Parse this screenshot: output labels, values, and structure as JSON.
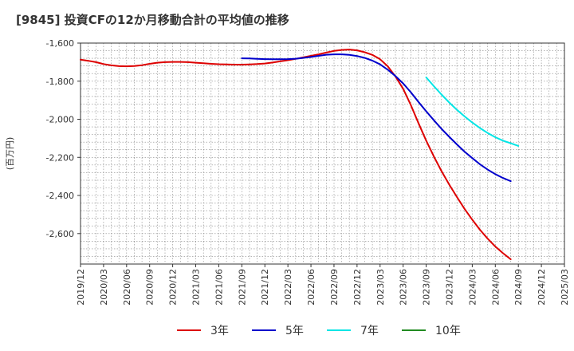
{
  "chart_data": {
    "type": "line",
    "title": "[9845]  投資CFの12か月移動合計の平均値の推移",
    "ylabel": "(百万円)",
    "xlabel": "",
    "ylim": [
      -2760,
      -1600
    ],
    "yticks": [
      -1600,
      -1800,
      -2000,
      -2200,
      -2400,
      -2600
    ],
    "ytick_labels": [
      "-1,600",
      "-1,800",
      "-2,000",
      "-2,200",
      "-2,400",
      "-2,600"
    ],
    "x_start": "2019-12",
    "x_end": "2025-03",
    "xtick_labels": [
      "2019/12",
      "2020/03",
      "2020/06",
      "2020/09",
      "2020/12",
      "2021/03",
      "2021/06",
      "2021/09",
      "2021/12",
      "2022/03",
      "2022/06",
      "2022/09",
      "2022/12",
      "2023/03",
      "2023/06",
      "2023/09",
      "2023/12",
      "2024/03",
      "2024/06",
      "2024/09",
      "2024/12",
      "2025/03"
    ],
    "grid": true,
    "legend_position": "bottom",
    "series": [
      {
        "name": "3年",
        "color": "#dd0000",
        "points": [
          [
            "2019-12",
            -1687
          ],
          [
            "2020-01",
            -1693
          ],
          [
            "2020-02",
            -1700
          ],
          [
            "2020-03",
            -1710
          ],
          [
            "2020-04",
            -1717
          ],
          [
            "2020-05",
            -1721
          ],
          [
            "2020-06",
            -1722
          ],
          [
            "2020-07",
            -1720
          ],
          [
            "2020-08",
            -1716
          ],
          [
            "2020-09",
            -1709
          ],
          [
            "2020-10",
            -1703
          ],
          [
            "2020-11",
            -1700
          ],
          [
            "2020-12",
            -1699
          ],
          [
            "2021-01",
            -1699
          ],
          [
            "2021-02",
            -1700
          ],
          [
            "2021-03",
            -1703
          ],
          [
            "2021-04",
            -1706
          ],
          [
            "2021-05",
            -1709
          ],
          [
            "2021-06",
            -1711
          ],
          [
            "2021-07",
            -1712
          ],
          [
            "2021-08",
            -1713
          ],
          [
            "2021-09",
            -1713
          ],
          [
            "2021-10",
            -1712
          ],
          [
            "2021-11",
            -1710
          ],
          [
            "2021-12",
            -1707
          ],
          [
            "2022-01",
            -1702
          ],
          [
            "2022-02",
            -1696
          ],
          [
            "2022-03",
            -1690
          ],
          [
            "2022-04",
            -1683
          ],
          [
            "2022-05",
            -1675
          ],
          [
            "2022-06",
            -1667
          ],
          [
            "2022-07",
            -1659
          ],
          [
            "2022-08",
            -1650
          ],
          [
            "2022-09",
            -1641
          ],
          [
            "2022-10",
            -1636
          ],
          [
            "2022-11",
            -1634
          ],
          [
            "2022-12",
            -1638
          ],
          [
            "2023-01",
            -1648
          ],
          [
            "2023-02",
            -1662
          ],
          [
            "2023-03",
            -1685
          ],
          [
            "2023-04",
            -1722
          ],
          [
            "2023-05",
            -1775
          ],
          [
            "2023-06",
            -1840
          ],
          [
            "2023-07",
            -1925
          ],
          [
            "2023-08",
            -2020
          ],
          [
            "2023-09",
            -2112
          ],
          [
            "2023-10",
            -2195
          ],
          [
            "2023-11",
            -2272
          ],
          [
            "2023-12",
            -2343
          ],
          [
            "2024-01",
            -2408
          ],
          [
            "2024-02",
            -2470
          ],
          [
            "2024-03",
            -2527
          ],
          [
            "2024-04",
            -2580
          ],
          [
            "2024-05",
            -2627
          ],
          [
            "2024-06",
            -2668
          ],
          [
            "2024-07",
            -2703
          ],
          [
            "2024-08",
            -2735
          ]
        ]
      },
      {
        "name": "5年",
        "color": "#0000cc",
        "points": [
          [
            "2021-09",
            -1680
          ],
          [
            "2021-10",
            -1681
          ],
          [
            "2021-11",
            -1683
          ],
          [
            "2021-12",
            -1684
          ],
          [
            "2022-01",
            -1685
          ],
          [
            "2022-02",
            -1685
          ],
          [
            "2022-03",
            -1684
          ],
          [
            "2022-04",
            -1682
          ],
          [
            "2022-05",
            -1678
          ],
          [
            "2022-06",
            -1673
          ],
          [
            "2022-07",
            -1667
          ],
          [
            "2022-08",
            -1661
          ],
          [
            "2022-09",
            -1659
          ],
          [
            "2022-10",
            -1659
          ],
          [
            "2022-11",
            -1662
          ],
          [
            "2022-12",
            -1668
          ],
          [
            "2023-01",
            -1678
          ],
          [
            "2023-02",
            -1692
          ],
          [
            "2023-03",
            -1712
          ],
          [
            "2023-04",
            -1740
          ],
          [
            "2023-05",
            -1773
          ],
          [
            "2023-06",
            -1812
          ],
          [
            "2023-07",
            -1858
          ],
          [
            "2023-08",
            -1909
          ],
          [
            "2023-09",
            -1958
          ],
          [
            "2023-10",
            -2005
          ],
          [
            "2023-11",
            -2050
          ],
          [
            "2023-12",
            -2092
          ],
          [
            "2024-01",
            -2132
          ],
          [
            "2024-02",
            -2170
          ],
          [
            "2024-03",
            -2204
          ],
          [
            "2024-04",
            -2236
          ],
          [
            "2024-05",
            -2264
          ],
          [
            "2024-06",
            -2288
          ],
          [
            "2024-07",
            -2308
          ],
          [
            "2024-08",
            -2325
          ]
        ]
      },
      {
        "name": "7年",
        "color": "#00e5e5",
        "points": [
          [
            "2023-09",
            -1780
          ],
          [
            "2023-10",
            -1826
          ],
          [
            "2023-11",
            -1870
          ],
          [
            "2023-12",
            -1912
          ],
          [
            "2024-01",
            -1950
          ],
          [
            "2024-02",
            -1985
          ],
          [
            "2024-03",
            -2017
          ],
          [
            "2024-04",
            -2046
          ],
          [
            "2024-05",
            -2072
          ],
          [
            "2024-06",
            -2094
          ],
          [
            "2024-07",
            -2112
          ],
          [
            "2024-08",
            -2126
          ],
          [
            "2024-09",
            -2140
          ]
        ]
      },
      {
        "name": "10年",
        "color": "#228b22",
        "points": []
      }
    ]
  }
}
